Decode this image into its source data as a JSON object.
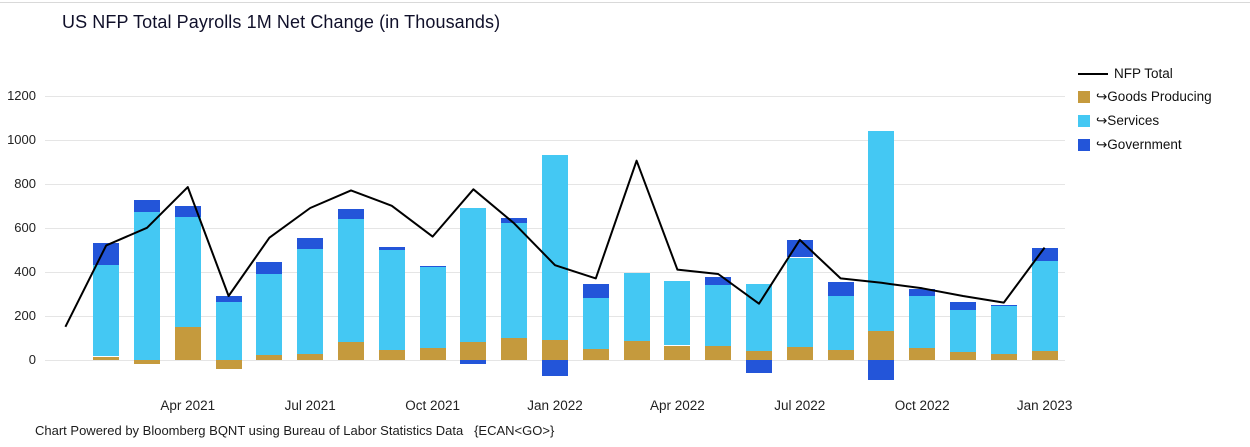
{
  "chart_data": {
    "type": "bar",
    "subtype": "stacked-bars-with-line-overlay",
    "title": "US NFP Total Payrolls 1M Net Change (in Thousands)",
    "categories": [
      "Jan 2021",
      "Feb 2021",
      "Mar 2021",
      "Apr 2021",
      "May 2021",
      "Jun 2021",
      "Jul 2021",
      "Aug 2021",
      "Sep 2021",
      "Oct 2021",
      "Nov 2021",
      "Dec 2021",
      "Jan 2022",
      "Feb 2022",
      "Mar 2022",
      "Apr 2022",
      "May 2022",
      "Jun 2022",
      "Jul 2022",
      "Aug 2022",
      "Sep 2022",
      "Oct 2022",
      "Nov 2022",
      "Dec 2022",
      "Jan 2023"
    ],
    "series": [
      {
        "name": "Goods Producing",
        "type": "bar",
        "color": "#c59a3d",
        "values": [
          0,
          15,
          -20,
          150,
          -40,
          20,
          25,
          80,
          45,
          55,
          80,
          100,
          90,
          50,
          85,
          65,
          65,
          40,
          60,
          45,
          130,
          55,
          35,
          25,
          40
        ]
      },
      {
        "name": "Services",
        "type": "bar",
        "color": "#44c8f3",
        "values": [
          0,
          415,
          670,
          500,
          265,
          370,
          480,
          560,
          455,
          365,
          610,
          520,
          840,
          230,
          310,
          295,
          275,
          305,
          405,
          245,
          910,
          235,
          190,
          220,
          410
        ]
      },
      {
        "name": "Government",
        "type": "bar",
        "color": "#2355d9",
        "values": [
          0,
          100,
          55,
          50,
          25,
          55,
          50,
          45,
          15,
          5,
          -20,
          25,
          -75,
          65,
          0,
          0,
          35,
          -60,
          80,
          65,
          -90,
          30,
          40,
          5,
          60
        ]
      },
      {
        "name": "NFP Total",
        "type": "line",
        "color": "#000000",
        "values": [
          150,
          520,
          600,
          785,
          290,
          555,
          690,
          770,
          700,
          560,
          775,
          620,
          430,
          370,
          905,
          410,
          390,
          255,
          545,
          370,
          350,
          325,
          290,
          260,
          510
        ]
      }
    ],
    "y_ticks": [
      0,
      200,
      400,
      600,
      800,
      1000,
      1200
    ],
    "ylim": [
      -160,
      1340
    ],
    "x_tick_labels": [
      "Apr 2021",
      "Jul 2021",
      "Oct 2021",
      "Jan 2022",
      "Apr 2022",
      "Jul 2022",
      "Oct 2022",
      "Jan 2023"
    ],
    "grid": "horizontal",
    "legend_position": "right"
  },
  "legend": {
    "items": [
      {
        "label": "NFP Total",
        "prefix": "",
        "swatch": "line",
        "color": "#000000"
      },
      {
        "label": "Goods Producing",
        "prefix": "↪",
        "swatch": "square",
        "color": "#c59a3d"
      },
      {
        "label": "Services",
        "prefix": "↪",
        "swatch": "square",
        "color": "#44c8f3"
      },
      {
        "label": "Government",
        "prefix": "↪",
        "swatch": "square",
        "color": "#2355d9"
      }
    ]
  },
  "footer": {
    "text": "Chart Powered by Bloomberg BQNT using Bureau of Labor Statistics Data   {ECAN<GO>}"
  }
}
